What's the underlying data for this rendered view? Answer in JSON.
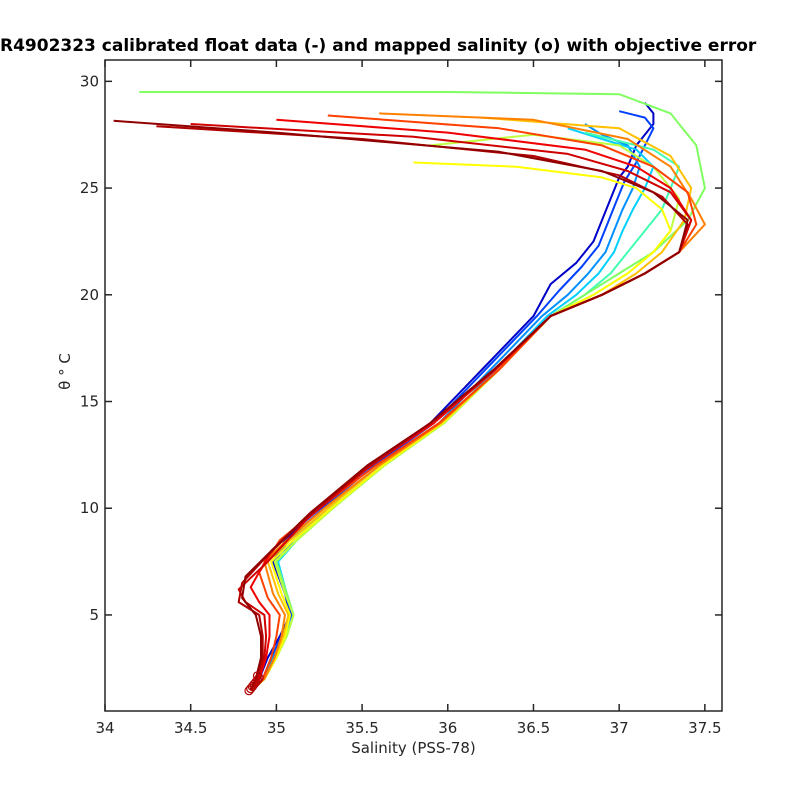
{
  "chart_data": {
    "type": "line",
    "title": "R4902323 calibrated float data (-) and mapped salinity (o) with objective error",
    "xlabel": "Salinity (PSS-78)",
    "ylabel": "θ ° C",
    "xlim": [
      34.0,
      37.6
    ],
    "ylim": [
      0.5,
      31.0
    ],
    "x_ticks": [
      "34",
      "34.5",
      "35",
      "35.5",
      "36",
      "36.5",
      "37",
      "37.5"
    ],
    "y_ticks": [
      "5",
      "10",
      "15",
      "20",
      "25",
      "30"
    ],
    "grid": false,
    "series": [
      {
        "color": "#0000c8",
        "x": [
          34.86,
          34.9,
          34.95,
          35.02,
          35.08,
          35.05,
          34.98,
          35.05,
          35.25,
          35.55,
          35.9,
          36.2,
          36.5,
          36.6,
          36.75,
          36.85,
          36.9,
          36.95,
          37.0,
          37.05,
          37.1,
          37.2,
          37.2,
          37.15
        ],
        "y": [
          1.5,
          2.0,
          3.0,
          4.0,
          5.0,
          6.0,
          7.5,
          8.5,
          10.0,
          12.0,
          14.0,
          16.5,
          19.0,
          20.5,
          21.5,
          22.5,
          23.5,
          24.5,
          25.5,
          26.0,
          27.0,
          28.0,
          28.5,
          29.0
        ]
      },
      {
        "color": "#0040ff",
        "x": [
          34.86,
          34.92,
          34.97,
          35.03,
          35.09,
          35.05,
          34.99,
          35.07,
          35.27,
          35.57,
          35.92,
          36.22,
          36.52,
          36.65,
          36.78,
          36.88,
          36.93,
          36.98,
          37.03,
          37.1,
          37.15,
          37.2,
          37.15,
          37.0
        ],
        "y": [
          1.5,
          2.0,
          3.0,
          4.0,
          5.0,
          6.0,
          7.5,
          8.5,
          10.0,
          12.0,
          14.0,
          16.5,
          19.0,
          20.2,
          21.3,
          22.3,
          23.3,
          24.3,
          25.3,
          26.2,
          27.0,
          27.8,
          28.3,
          28.6
        ]
      },
      {
        "color": "#0090ff",
        "x": [
          34.86,
          34.92,
          34.98,
          35.05,
          35.1,
          35.06,
          35.0,
          35.1,
          35.3,
          35.6,
          35.95,
          36.25,
          36.55,
          36.7,
          36.82,
          36.92,
          36.97,
          37.02,
          37.08,
          37.12,
          37.05,
          36.9,
          36.8
        ],
        "y": [
          1.5,
          2.0,
          3.0,
          4.0,
          5.0,
          6.0,
          7.5,
          8.5,
          10.0,
          12.0,
          14.0,
          16.5,
          19.0,
          20.0,
          21.0,
          22.0,
          23.0,
          24.0,
          25.0,
          26.0,
          27.0,
          27.5,
          28.0
        ]
      },
      {
        "color": "#00d0ff",
        "x": [
          34.86,
          34.93,
          34.99,
          35.06,
          35.1,
          35.06,
          35.01,
          35.12,
          35.32,
          35.62,
          35.97,
          36.28,
          36.58,
          36.75,
          36.88,
          36.97,
          37.02,
          37.08,
          37.15,
          37.2,
          37.1,
          36.9,
          36.7
        ],
        "y": [
          1.5,
          2.0,
          3.0,
          4.0,
          5.0,
          6.0,
          7.5,
          8.5,
          10.0,
          12.0,
          14.0,
          16.5,
          19.0,
          20.0,
          21.0,
          22.0,
          23.0,
          24.0,
          25.0,
          26.0,
          26.8,
          27.3,
          27.8
        ]
      },
      {
        "color": "#40ffb0",
        "x": [
          34.86,
          34.93,
          35.0,
          35.06,
          35.1,
          35.06,
          35.0,
          35.12,
          35.33,
          35.63,
          35.98,
          36.3,
          36.6,
          36.8,
          36.95,
          37.05,
          37.15,
          37.25,
          37.3,
          37.35,
          37.2,
          37.0,
          36.8
        ],
        "y": [
          1.5,
          2.0,
          3.0,
          4.0,
          5.0,
          6.0,
          7.5,
          8.5,
          10.0,
          12.0,
          14.0,
          16.5,
          19.0,
          20.0,
          21.0,
          22.0,
          23.0,
          24.0,
          25.0,
          26.0,
          26.8,
          27.2,
          27.6
        ]
      },
      {
        "color": "#80ff60",
        "x": [
          34.86,
          34.93,
          35.0,
          35.06,
          35.1,
          35.06,
          35.0,
          35.12,
          35.33,
          35.63,
          35.98,
          36.3,
          36.6,
          36.8,
          37.0,
          37.2,
          37.4,
          37.5,
          37.45,
          37.3,
          37.0,
          36.0,
          34.2
        ],
        "y": [
          1.5,
          2.0,
          3.0,
          4.0,
          5.0,
          6.0,
          7.5,
          8.5,
          10.0,
          12.0,
          14.0,
          16.5,
          19.0,
          20.0,
          21.0,
          22.0,
          23.5,
          25.0,
          27.0,
          28.5,
          29.4,
          29.5,
          29.5
        ]
      },
      {
        "color": "#c0ff40",
        "x": [
          34.86,
          34.93,
          35.0,
          35.06,
          35.1,
          35.05,
          34.99,
          35.12,
          35.33,
          35.63,
          35.98,
          36.3,
          36.6,
          36.85,
          37.05,
          37.2,
          37.3,
          37.35,
          37.2,
          37.0,
          36.5,
          35.9
        ],
        "y": [
          1.5,
          2.0,
          3.0,
          4.0,
          5.0,
          6.0,
          7.5,
          8.5,
          10.0,
          12.0,
          14.0,
          16.5,
          19.0,
          20.0,
          21.0,
          22.0,
          23.0,
          24.5,
          26.0,
          27.0,
          27.5,
          27.0
        ]
      },
      {
        "color": "#ffff00",
        "x": [
          34.86,
          34.93,
          35.0,
          35.05,
          35.08,
          35.03,
          34.97,
          35.1,
          35.32,
          35.62,
          35.97,
          36.3,
          36.6,
          36.85,
          37.05,
          37.2,
          37.3,
          37.25,
          37.1,
          36.9,
          36.4,
          35.8
        ],
        "y": [
          1.5,
          2.0,
          3.0,
          4.0,
          5.0,
          6.0,
          7.5,
          8.5,
          10.0,
          12.0,
          14.0,
          16.5,
          19.0,
          20.0,
          21.0,
          22.0,
          23.0,
          24.0,
          25.0,
          25.5,
          26.0,
          26.2
        ]
      },
      {
        "color": "#ffc000",
        "x": [
          34.86,
          34.93,
          34.99,
          35.04,
          35.07,
          35.01,
          34.95,
          35.08,
          35.3,
          35.6,
          35.96,
          36.3,
          36.6,
          36.9,
          37.1,
          37.25,
          37.38,
          37.42,
          37.3,
          37.0,
          36.2
        ],
        "y": [
          1.5,
          2.0,
          3.0,
          4.0,
          5.0,
          6.0,
          7.5,
          8.5,
          10.0,
          12.0,
          14.0,
          16.5,
          19.0,
          20.0,
          21.0,
          22.0,
          23.5,
          25.0,
          26.5,
          27.8,
          28.3
        ]
      },
      {
        "color": "#ff8000",
        "x": [
          34.86,
          34.93,
          34.99,
          35.03,
          35.05,
          34.98,
          34.93,
          35.06,
          35.28,
          35.6,
          35.96,
          36.3,
          36.6,
          36.9,
          37.15,
          37.35,
          37.5,
          37.42,
          37.3,
          37.05,
          36.5,
          35.6
        ],
        "y": [
          1.5,
          2.0,
          3.0,
          4.0,
          5.0,
          6.0,
          7.5,
          8.5,
          10.0,
          12.0,
          14.0,
          16.5,
          19.0,
          20.0,
          21.0,
          22.0,
          23.3,
          24.5,
          26.0,
          27.3,
          28.2,
          28.5
        ]
      },
      {
        "color": "#ff4000",
        "x": [
          34.86,
          34.92,
          34.97,
          35.0,
          35.02,
          34.95,
          34.9,
          35.02,
          35.25,
          35.58,
          35.95,
          36.3,
          36.6,
          36.9,
          37.15,
          37.35,
          37.45,
          37.4,
          37.2,
          36.9,
          36.3,
          35.3
        ],
        "y": [
          1.5,
          2.0,
          3.0,
          4.0,
          5.0,
          5.8,
          7.0,
          8.5,
          10.0,
          12.0,
          14.0,
          16.5,
          19.0,
          20.0,
          21.0,
          22.0,
          23.3,
          24.8,
          26.0,
          27.0,
          27.8,
          28.4
        ]
      },
      {
        "color": "#f00000",
        "x": [
          34.85,
          34.9,
          34.94,
          34.96,
          34.96,
          34.9,
          34.85,
          34.97,
          35.2,
          35.55,
          35.92,
          36.28,
          36.6,
          36.9,
          37.15,
          37.35,
          37.42,
          37.3,
          37.1,
          36.8,
          36.0,
          35.0
        ],
        "y": [
          1.5,
          2.0,
          3.0,
          4.0,
          5.0,
          5.6,
          6.3,
          8.0,
          9.8,
          12.0,
          14.0,
          16.5,
          19.0,
          20.0,
          21.0,
          22.0,
          23.5,
          25.0,
          26.0,
          26.8,
          27.6,
          28.2
        ]
      },
      {
        "color": "#d00000",
        "x": [
          34.85,
          34.89,
          34.93,
          34.94,
          34.93,
          34.82,
          34.78,
          34.95,
          35.18,
          35.52,
          35.9,
          36.27,
          36.6,
          36.9,
          37.15,
          37.35,
          37.42,
          37.3,
          37.05,
          36.7,
          35.8,
          34.5
        ],
        "y": [
          1.5,
          2.0,
          3.0,
          4.0,
          5.0,
          5.6,
          6.2,
          7.5,
          9.5,
          11.8,
          14.0,
          16.5,
          19.0,
          20.0,
          21.0,
          22.0,
          23.5,
          24.8,
          25.8,
          26.6,
          27.4,
          28.0
        ]
      },
      {
        "color": "#b00000",
        "x": [
          34.85,
          34.88,
          34.92,
          34.92,
          34.9,
          34.78,
          34.8,
          34.95,
          35.18,
          35.52,
          35.9,
          36.27,
          36.6,
          36.9,
          37.15,
          37.35,
          37.4,
          37.25,
          37.0,
          36.5,
          35.5,
          34.3
        ],
        "y": [
          1.5,
          2.0,
          3.0,
          4.0,
          5.0,
          5.6,
          6.5,
          7.8,
          9.6,
          11.9,
          14.0,
          16.5,
          19.0,
          20.0,
          21.0,
          22.0,
          23.3,
          24.6,
          25.6,
          26.5,
          27.3,
          27.9
        ]
      },
      {
        "color": "#900000",
        "x": [
          34.85,
          34.88,
          34.91,
          34.91,
          34.88,
          34.8,
          34.82,
          34.97,
          35.2,
          35.53,
          35.9,
          36.27,
          36.6,
          36.9,
          37.15,
          37.35,
          37.4,
          37.2,
          36.9,
          36.3,
          35.0,
          34.05
        ],
        "y": [
          1.5,
          2.0,
          3.0,
          4.0,
          5.0,
          5.8,
          6.8,
          8.0,
          9.8,
          12.0,
          14.0,
          16.5,
          19.0,
          20.0,
          21.0,
          22.0,
          23.5,
          24.8,
          25.8,
          26.7,
          27.6,
          28.15
        ]
      }
    ],
    "mapped_salinity": {
      "color": "#b00000",
      "marker": "o",
      "x": [
        34.84,
        34.85,
        34.86,
        34.87,
        34.88,
        34.89,
        34.9,
        34.89
      ],
      "y": [
        1.45,
        1.55,
        1.65,
        1.75,
        1.85,
        1.95,
        2.05,
        2.15
      ]
    }
  }
}
